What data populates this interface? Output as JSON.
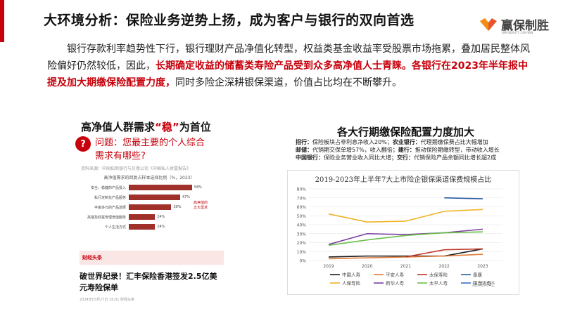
{
  "header": {
    "title": "大环境分析：保险业务逆势上扬，成为客户与银行的双向首选",
    "logo_text": "赢保制胜",
    "logo_sub": "WIN BEAUTY CAN WIN"
  },
  "intro": {
    "part1": "银行存款利率趋势性下行，银行理财产品净值化转型，权益类基金收益率受股票市场拖累，叠加居民整体风险偏好仍然较低，因此，",
    "highlight": "长期确定收益的储蓄类寿险产品受到众多高净值人士青睐。各银行在2023年半年报中提及加大期缴保险配置力度，",
    "part2": "同时多险企深耕银保渠道，价值占比均在不断攀升。"
  },
  "left": {
    "title_pre": "高净值人群需求",
    "title_quote": "“稳”",
    "title_post": "为首位",
    "q_icon": "?",
    "question": "问题：您最主要的个人综合需求有哪些?",
    "source": "资料来源：中国招商银行与贝恩公司《中国私人财富报告》",
    "mini_title": "高净值需求的回复占样本选择比例（%，2023）",
    "bars": [
      {
        "label": "安全、稳健的产品投入",
        "value": 58
      },
      {
        "label": "私行定制化产品服务",
        "value": 47
      },
      {
        "label": "丰富多元的产品选择",
        "value": 39
      },
      {
        "label": "高端及财富管理增值服务",
        "value": 24
      },
      {
        "label": "个人生活方式",
        "value": 24
      }
    ],
    "bar_value_suffix": "%",
    "bar_note": "高净值的五大需求",
    "news_brand": "财经头条",
    "news_headline": "破世界纪录！汇丰保险香港签发2.5亿美元寿险保单",
    "news_meta": "2024年03月27日 16:01 财经头条"
  },
  "right": {
    "title": "各大行期缴保险配置力度加大",
    "info": [
      [
        {
          "k": "招行：",
          "v": "保险板块占非利息净收入20%；"
        },
        {
          "k": "农业银行：",
          "v": "代理期缴保费占比大幅增加"
        }
      ],
      [
        {
          "k": "邮储：",
          "v": "代销期交保单增57%，收入翻倍；"
        },
        {
          "k": "建行：",
          "v": "推动保险期缴转型，带动收入增长"
        }
      ],
      [
        {
          "k": "中国银行：",
          "v": "保险业务营业收入同比大增；"
        },
        {
          "k": "交行：",
          "v": "代销保险产品余额同比增长超2成"
        }
      ]
    ],
    "watermark": "巡湖财经"
  },
  "chart_data": {
    "type": "line",
    "title": "2019-2023年上半年7大上市险企银保渠道保费规模占比",
    "x": [
      "2019",
      "2020",
      "2021",
      "2022",
      "2023"
    ],
    "ylim": [
      0,
      80
    ],
    "yticks": [
      "0%",
      "10%",
      "20%",
      "30%",
      "40%",
      "50%",
      "60%",
      "70%",
      "80%"
    ],
    "series": [
      {
        "name": "中国人寿",
        "color": "#1a1a1a",
        "values": [
          4,
          5,
          5,
          5,
          13
        ]
      },
      {
        "name": "平安人寿",
        "color": "#e07b39",
        "values": [
          2,
          3,
          4,
          5,
          7
        ]
      },
      {
        "name": "太保寿险",
        "color": "#c0392b",
        "values": [
          null,
          null,
          4,
          12,
          13
        ]
      },
      {
        "name": "泰康",
        "color": "#2c5aa0",
        "values": [
          null,
          null,
          null,
          70,
          69
        ]
      },
      {
        "name": "人保寿险",
        "color": "#f0b429",
        "values": [
          52,
          43,
          44,
          55,
          57
        ]
      },
      {
        "name": "新华人寿",
        "color": "#7b3fa0",
        "values": [
          18,
          30,
          29,
          31,
          35
        ]
      },
      {
        "name": "太平人寿",
        "color": "#6abf4b",
        "values": [
          17,
          23,
          28,
          31,
          32
        ]
      },
      {
        "name": "阳光人寿",
        "color": "#3a6fc4",
        "values": [
          null,
          null,
          null,
          null,
          null
        ]
      }
    ]
  }
}
